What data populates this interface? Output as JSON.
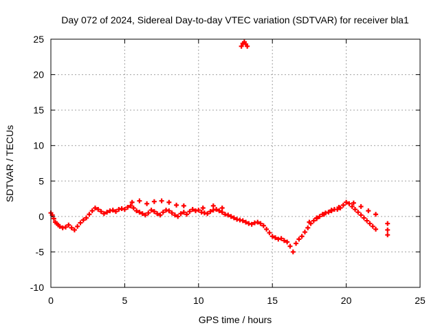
{
  "chart_data": {
    "type": "scatter",
    "title": "Day 072 of 2024, Sidereal Day-to-day VTEC variation (SDTVAR) for receiver bla1",
    "xlabel": "GPS time / hours",
    "ylabel": "SDTVAR / TECUs",
    "xlim": [
      0,
      25
    ],
    "ylim": [
      -10,
      25
    ],
    "xticks": [
      0,
      5,
      10,
      15,
      20,
      25
    ],
    "yticks": [
      -10,
      -5,
      0,
      5,
      10,
      15,
      20,
      25
    ],
    "grid": true,
    "marker": "plus",
    "series": [
      {
        "name": "SDTVAR",
        "color": "#ff0000",
        "x": [
          0.0,
          0.1,
          0.2,
          0.3,
          0.4,
          0.5,
          0.6,
          0.8,
          1.0,
          1.2,
          1.4,
          1.6,
          1.8,
          2.0,
          2.2,
          2.4,
          2.6,
          2.8,
          3.0,
          3.2,
          3.4,
          3.6,
          3.8,
          4.0,
          4.2,
          4.4,
          4.6,
          4.8,
          5.0,
          5.2,
          5.4,
          5.6,
          5.8,
          6.0,
          6.2,
          6.4,
          6.6,
          6.8,
          7.0,
          7.2,
          7.4,
          7.6,
          7.8,
          8.0,
          8.2,
          8.4,
          8.6,
          8.8,
          9.0,
          9.2,
          9.4,
          9.6,
          9.8,
          10.0,
          10.2,
          10.4,
          10.6,
          10.8,
          11.0,
          11.2,
          11.4,
          11.6,
          11.8,
          12.0,
          12.2,
          12.4,
          12.6,
          12.8,
          13.0,
          13.2,
          13.4,
          13.6,
          13.8,
          14.0,
          14.2,
          14.4,
          14.6,
          14.8,
          15.0,
          15.2,
          15.4,
          15.6,
          15.8,
          16.0,
          16.2,
          16.4,
          16.6,
          16.8,
          17.0,
          17.2,
          17.4,
          17.6,
          17.8,
          18.0,
          18.2,
          18.4,
          18.6,
          18.8,
          19.0,
          19.2,
          19.4,
          19.6,
          19.8,
          20.0,
          20.2,
          20.4,
          20.6,
          20.8,
          21.0,
          21.2,
          21.4,
          21.6,
          21.8,
          22.0,
          22.8,
          22.8,
          22.8,
          12.9,
          13.0,
          13.1,
          13.2,
          13.3,
          5.5,
          6.0,
          6.5,
          7.0,
          7.5,
          8.0,
          8.5,
          9.0,
          10.3,
          11.0,
          11.6,
          17.5,
          18.0,
          18.5,
          19.0,
          19.5,
          20.5,
          21.0,
          21.5,
          22.0
        ],
        "y": [
          0.5,
          0.2,
          -0.3,
          -0.8,
          -1.0,
          -1.2,
          -1.4,
          -1.6,
          -1.5,
          -1.2,
          -1.6,
          -1.9,
          -1.4,
          -0.9,
          -0.5,
          -0.2,
          0.3,
          0.8,
          1.2,
          1.0,
          0.7,
          0.4,
          0.6,
          0.8,
          0.9,
          0.7,
          1.0,
          1.1,
          1.0,
          1.3,
          1.5,
          1.2,
          0.8,
          0.6,
          0.4,
          0.2,
          0.5,
          0.9,
          0.7,
          0.4,
          0.2,
          0.6,
          0.9,
          0.8,
          0.5,
          0.2,
          0.0,
          0.4,
          0.6,
          0.3,
          0.7,
          1.0,
          0.8,
          0.9,
          0.6,
          0.5,
          0.4,
          0.7,
          0.9,
          1.0,
          0.8,
          0.6,
          0.3,
          0.2,
          0.0,
          -0.2,
          -0.4,
          -0.5,
          -0.6,
          -0.8,
          -1.0,
          -1.1,
          -0.9,
          -0.8,
          -1.0,
          -1.3,
          -1.8,
          -2.3,
          -2.8,
          -3.0,
          -3.2,
          -3.1,
          -3.4,
          -3.6,
          -4.2,
          -5.0,
          -3.8,
          -3.2,
          -2.8,
          -2.2,
          -1.6,
          -1.0,
          -0.6,
          -0.3,
          0.0,
          0.3,
          0.5,
          0.6,
          0.8,
          1.0,
          1.0,
          1.2,
          1.6,
          2.0,
          1.8,
          1.4,
          1.0,
          0.6,
          0.2,
          -0.2,
          -0.6,
          -1.0,
          -1.4,
          -1.8,
          -1.0,
          -1.9,
          -2.6,
          24.0,
          24.4,
          24.6,
          24.3,
          24.0,
          2.0,
          2.2,
          1.8,
          2.1,
          2.2,
          2.0,
          1.6,
          1.5,
          1.2,
          1.5,
          1.2,
          -0.8,
          -0.2,
          0.3,
          0.9,
          1.3,
          1.9,
          1.4,
          0.8,
          0.3
        ]
      }
    ]
  }
}
